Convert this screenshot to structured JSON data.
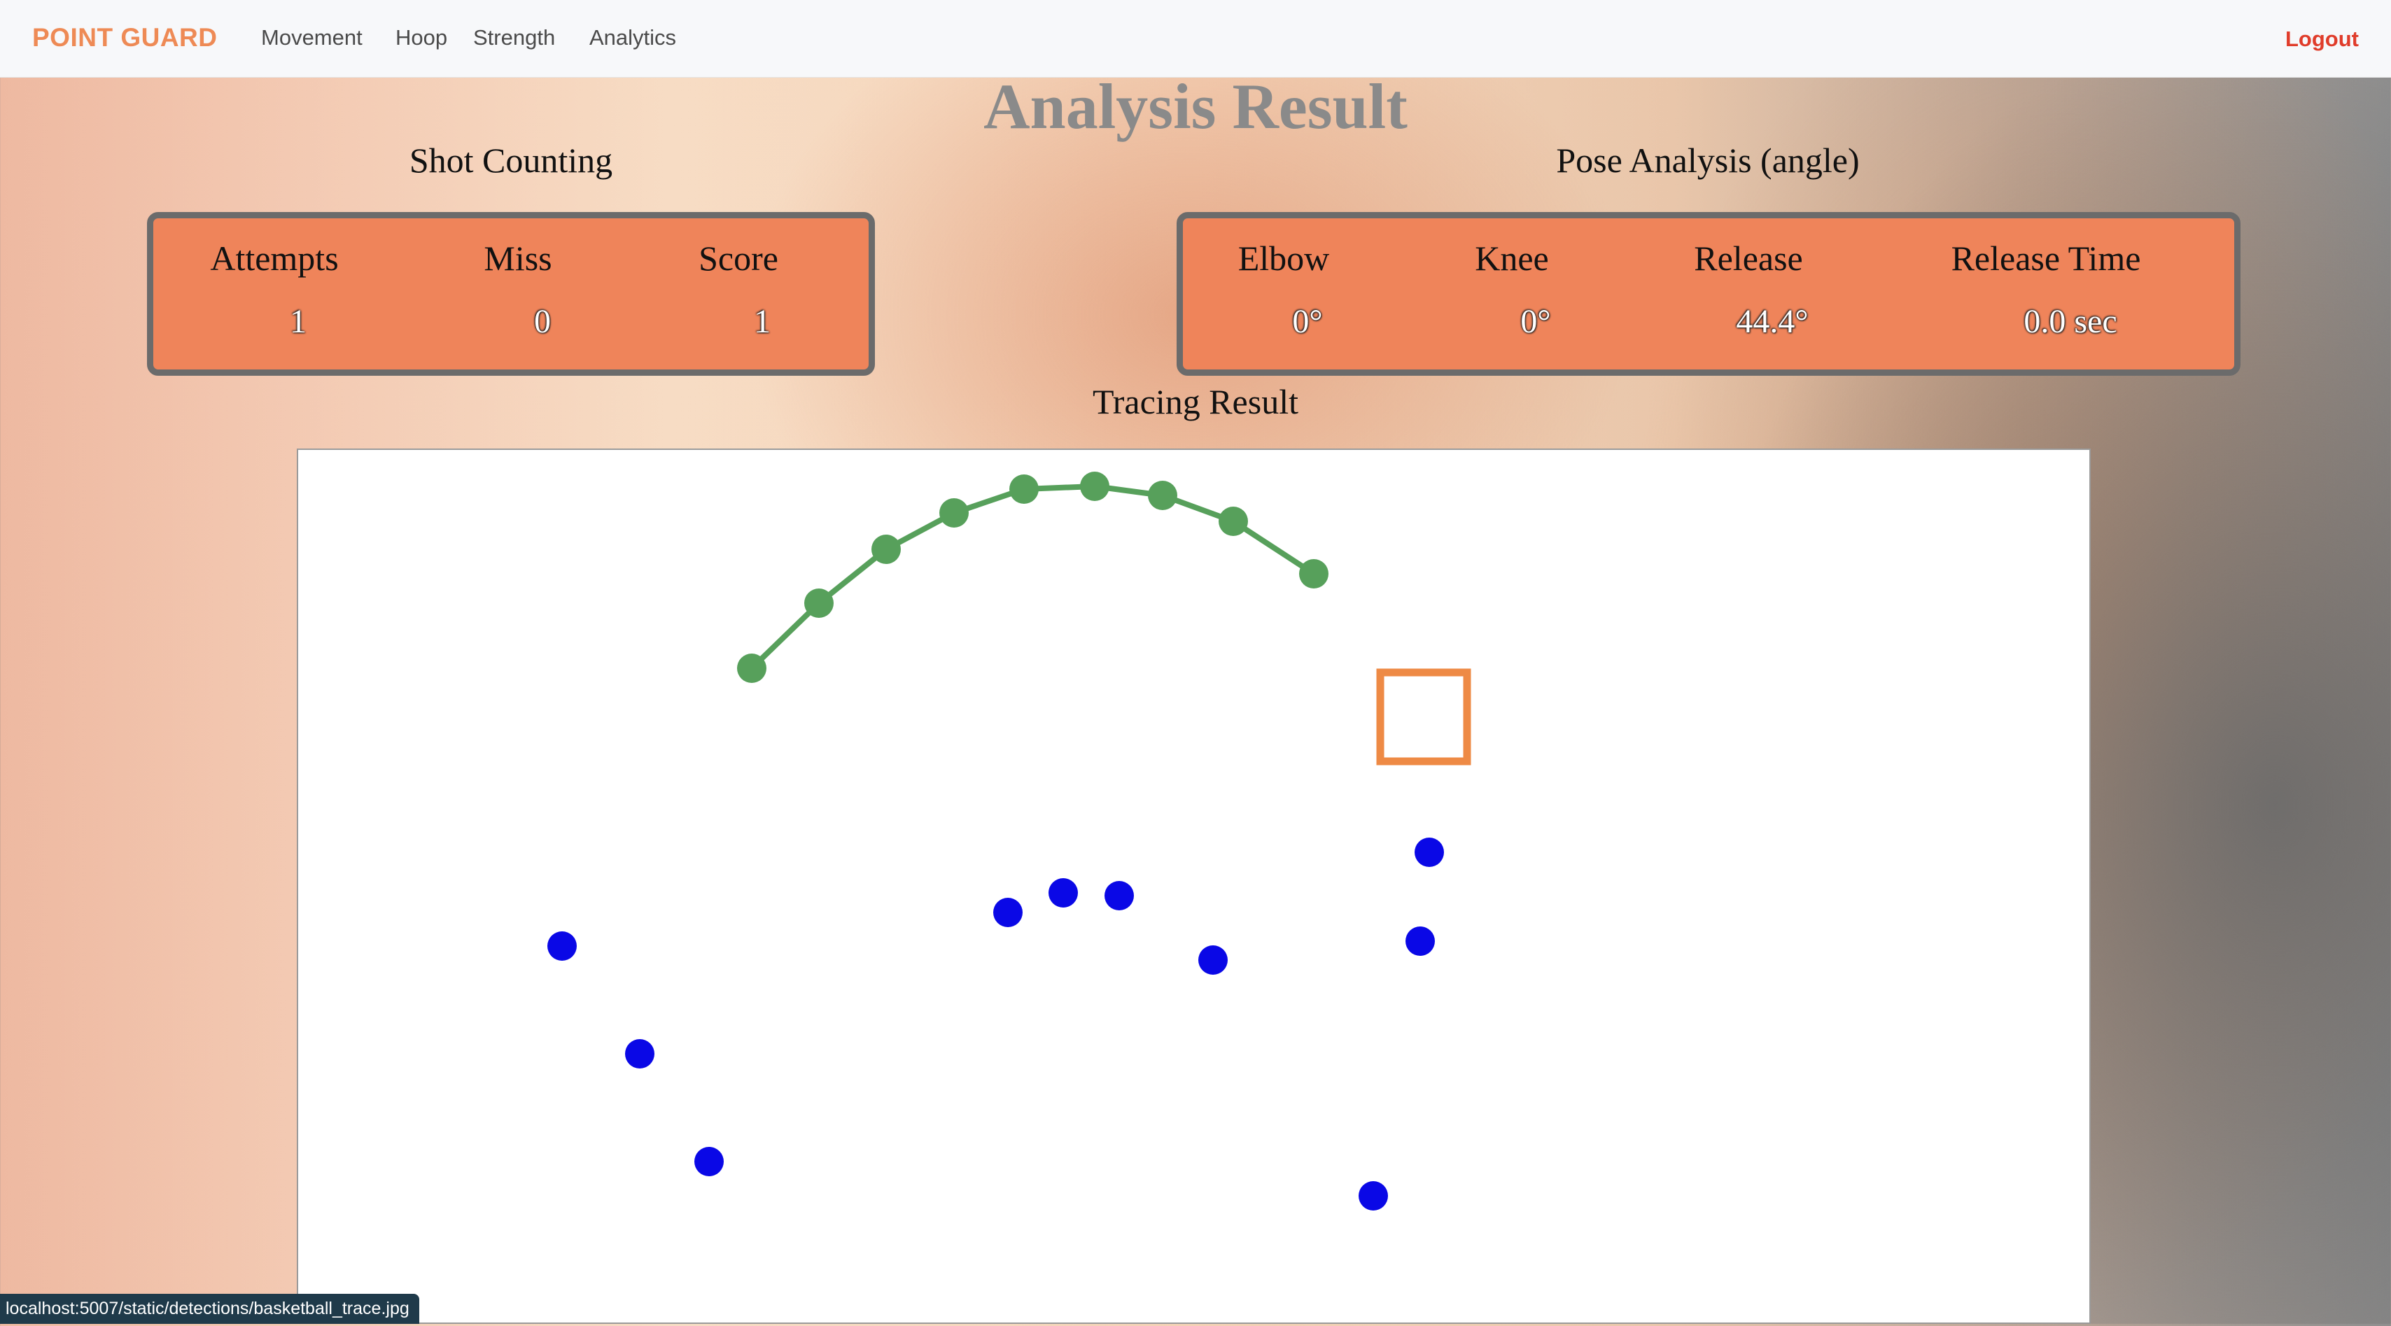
{
  "nav": {
    "brand": "POINT GUARD",
    "links": [
      "Movement",
      "Hoop",
      "Strength",
      "Analytics"
    ],
    "logout": "Logout"
  },
  "page": {
    "title": "Analysis Result",
    "shot_title": "Shot Counting",
    "pose_title": "Pose Analysis (angle)",
    "tracing_title": "Tracing Result"
  },
  "shot": {
    "labels": [
      "Attempts",
      "Miss",
      "Score"
    ],
    "values": [
      "1",
      "0",
      "1"
    ]
  },
  "pose": {
    "labels": [
      "Elbow",
      "Knee",
      "Release",
      "Release Time"
    ],
    "values": [
      "0°",
      "0°",
      "44.4°",
      "0.0 sec"
    ]
  },
  "colors": {
    "brand": "#ee8a55",
    "logout": "#e03c2a",
    "box": "#ef845a",
    "trajectory": "#57a05b",
    "points": "#0a08e6",
    "hoop": "#ee8a45"
  },
  "status_url": "localhost:5007/static/detections/basketball_trace.jpg"
}
